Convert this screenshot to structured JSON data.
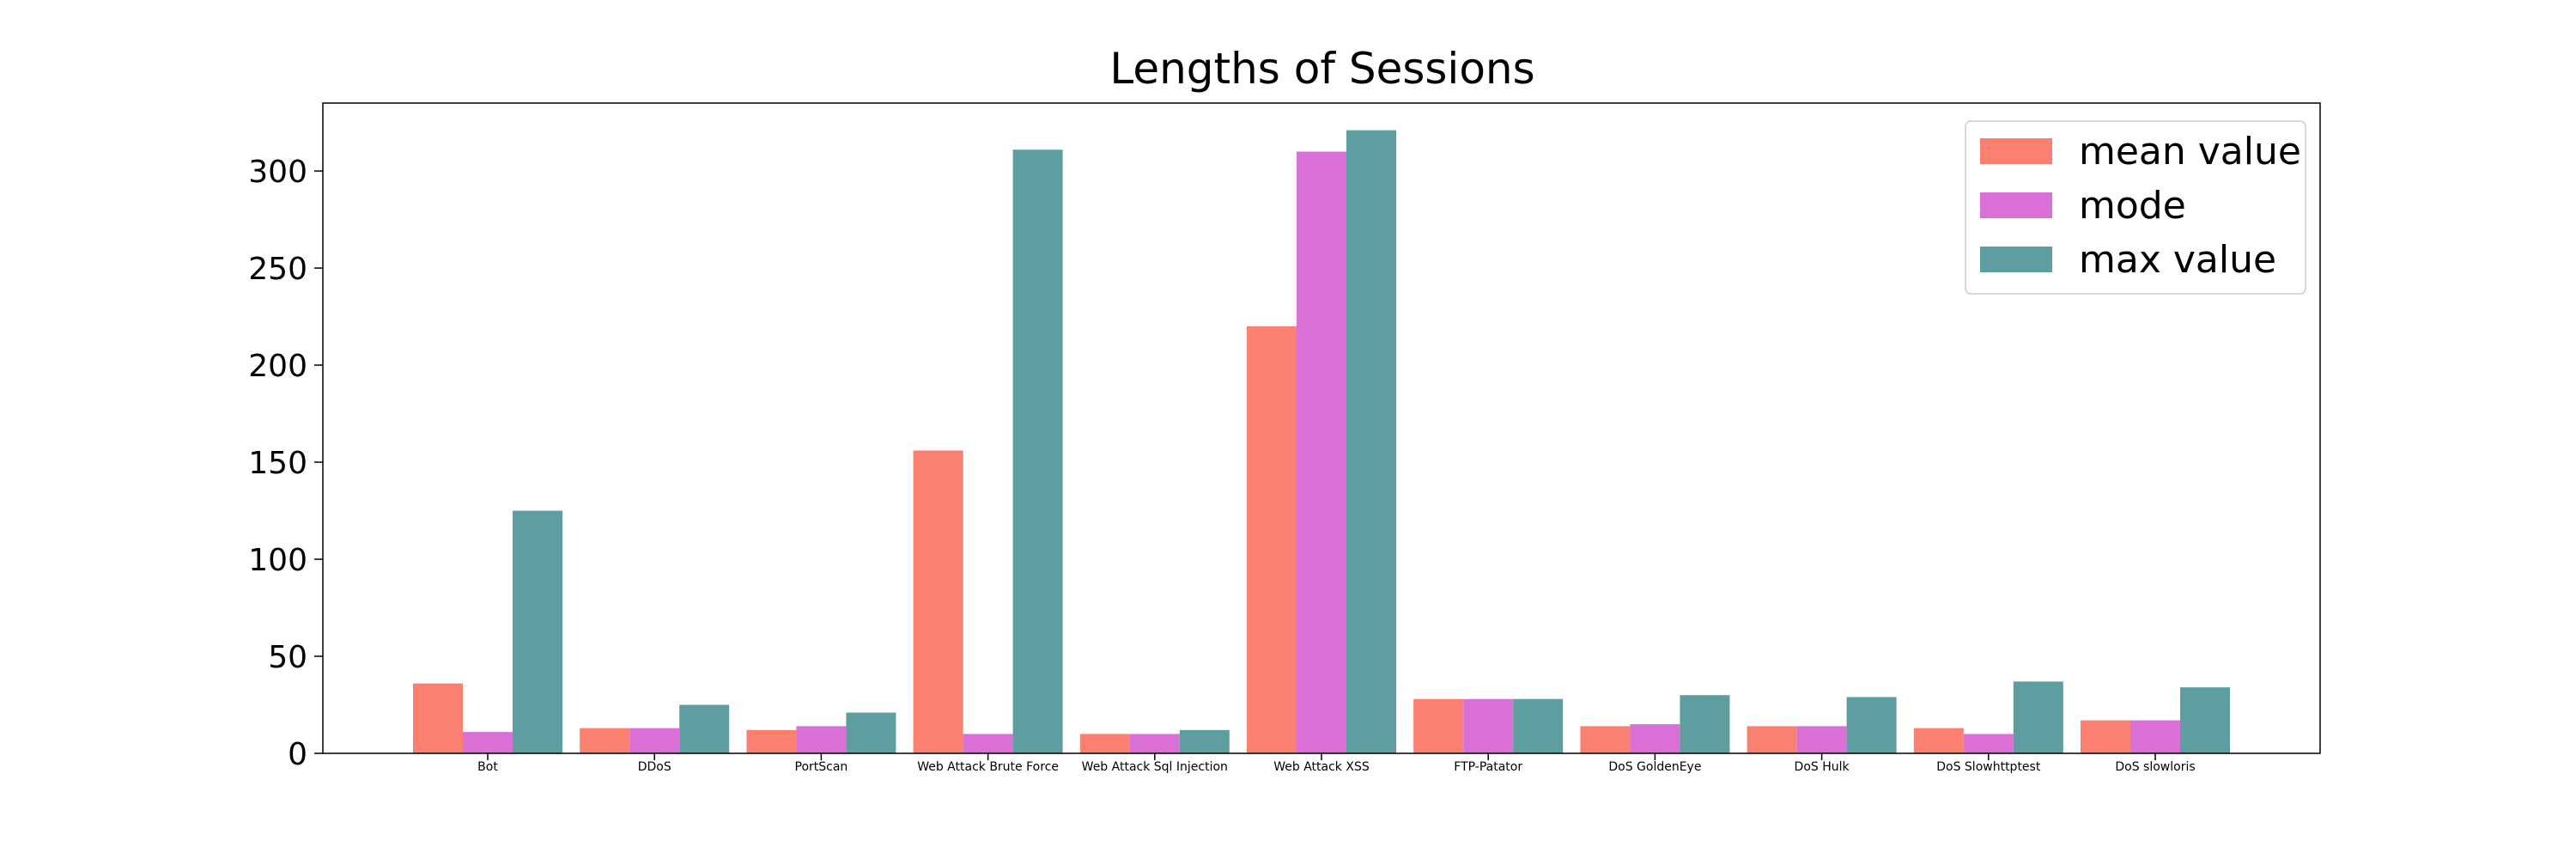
{
  "chart_data": {
    "type": "bar",
    "title": "Lengths of Sessions",
    "xlabel": "",
    "ylabel": "",
    "ylim": [
      0,
      335
    ],
    "yticks": [
      0,
      50,
      100,
      150,
      200,
      250,
      300
    ],
    "grid": false,
    "legend_position": "top-right",
    "categories": [
      "Bot",
      "DDoS",
      "PortScan",
      "Web Attack  Brute Force",
      "Web Attack  Sql Injection",
      "Web Attack  XSS",
      "FTP-Patator",
      "DoS GoldenEye",
      "DoS Hulk",
      "DoS Slowhttptest",
      "DoS slowloris"
    ],
    "series": [
      {
        "name": "mean value",
        "color": "#fa8072",
        "values": [
          36,
          13,
          12,
          156,
          10,
          220,
          28,
          14,
          14,
          13,
          17
        ]
      },
      {
        "name": "mode",
        "color": "#da70d6",
        "values": [
          11,
          13,
          14,
          10,
          10,
          310,
          28,
          15,
          14,
          10,
          17
        ]
      },
      {
        "name": "max value",
        "color": "#5f9ea0",
        "values": [
          125,
          25,
          21,
          311,
          12,
          321,
          28,
          30,
          29,
          37,
          34
        ]
      }
    ]
  }
}
